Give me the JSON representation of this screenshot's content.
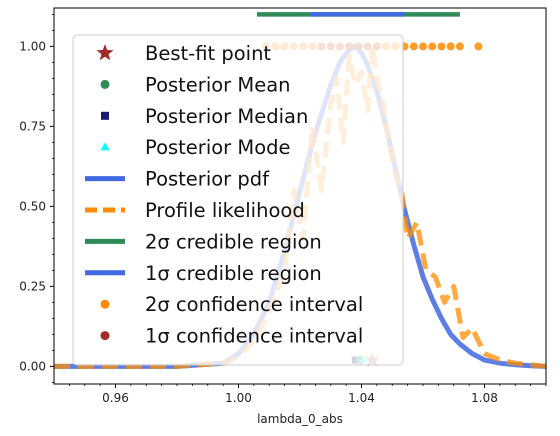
{
  "chart_data": {
    "type": "line",
    "xlabel": "lambda_0_abs",
    "ylabel": "",
    "xlim": [
      0.94,
      1.1
    ],
    "ylim": [
      -0.055,
      1.12
    ],
    "xticks": [
      0.96,
      1.0,
      1.04,
      1.08
    ],
    "xtick_labels": [
      "0.96",
      "1.00",
      "1.04",
      "1.08"
    ],
    "yticks": [
      0.0,
      0.25,
      0.5,
      0.75,
      1.0
    ],
    "ytick_labels": [
      "0.00",
      "0.25",
      "0.50",
      "0.75",
      "1.00"
    ],
    "grid": false,
    "legend_placement": "upper-left",
    "legend": [
      {
        "label": "Best-fit point",
        "marker": "star",
        "color": "#a52a2a"
      },
      {
        "label": "Posterior Mean",
        "marker": "circle",
        "color": "#2e8b57"
      },
      {
        "label": "Posterior Median",
        "marker": "square",
        "color": "#191970"
      },
      {
        "label": "Posterior Mode",
        "marker": "triangle",
        "color": "#00ffff"
      },
      {
        "label": "Posterior pdf",
        "marker": "line",
        "color": "#4169e1"
      },
      {
        "label": "Profile likelihood",
        "marker": "dashed",
        "color": "#ff8c00"
      },
      {
        "label": "2σ credible region",
        "marker": "line",
        "color": "#2e8b57"
      },
      {
        "label": "1σ credible region",
        "marker": "line",
        "color": "#4169e1"
      },
      {
        "label": "2σ confidence interval",
        "marker": "circle",
        "color": "#ff8c00"
      },
      {
        "label": "1σ confidence interval",
        "marker": "circle",
        "color": "#a52a2a"
      }
    ],
    "series": [
      {
        "name": "Posterior pdf",
        "color": "#4169e1",
        "x": [
          0.94,
          0.96,
          0.98,
          0.995,
          1.0,
          1.005,
          1.01,
          1.015,
          1.02,
          1.025,
          1.03,
          1.033,
          1.036,
          1.038,
          1.04,
          1.042,
          1.045,
          1.048,
          1.051,
          1.054,
          1.057,
          1.06,
          1.063,
          1.066,
          1.069,
          1.072,
          1.076,
          1.08,
          1.085,
          1.09,
          1.095,
          1.1
        ],
        "y": [
          0.0,
          0.0,
          0.0,
          0.01,
          0.04,
          0.1,
          0.2,
          0.36,
          0.55,
          0.73,
          0.88,
          0.95,
          0.99,
          1.0,
          0.98,
          0.94,
          0.86,
          0.75,
          0.62,
          0.49,
          0.38,
          0.28,
          0.21,
          0.15,
          0.1,
          0.07,
          0.04,
          0.02,
          0.01,
          0.005,
          0.002,
          0.0
        ]
      },
      {
        "name": "Profile likelihood",
        "color": "#ff8c00",
        "x": [
          0.94,
          0.96,
          0.98,
          0.995,
          1.0,
          1.005,
          1.01,
          1.015,
          1.018,
          1.021,
          1.024,
          1.027,
          1.03,
          1.032,
          1.034,
          1.036,
          1.038,
          1.04,
          1.042,
          1.0435,
          1.045,
          1.047,
          1.049,
          1.051,
          1.053,
          1.055,
          1.058,
          1.061,
          1.064,
          1.067,
          1.07,
          1.073,
          1.076,
          1.08,
          1.085,
          1.09,
          1.1
        ],
        "y": [
          0.0,
          0.0,
          0.0,
          0.01,
          0.03,
          0.08,
          0.17,
          0.3,
          0.55,
          0.4,
          0.75,
          0.55,
          0.82,
          0.9,
          0.7,
          0.97,
          0.88,
          0.92,
          0.8,
          1.0,
          0.9,
          0.82,
          0.7,
          0.6,
          0.55,
          0.4,
          0.45,
          0.3,
          0.28,
          0.2,
          0.25,
          0.09,
          0.12,
          0.04,
          0.02,
          0.01,
          0.0
        ]
      }
    ],
    "credible_regions": {
      "two_sigma": [
        1.006,
        1.072
      ],
      "one_sigma": [
        1.023,
        1.054
      ],
      "y": 1.1
    },
    "confidence_intervals": {
      "two_sigma_x": [
        1.009,
        1.012,
        1.015,
        1.018,
        1.021,
        1.024,
        1.027,
        1.03,
        1.033,
        1.036,
        1.039,
        1.042,
        1.045,
        1.048,
        1.051,
        1.054,
        1.057,
        1.06,
        1.063,
        1.066,
        1.069,
        1.072,
        1.078
      ],
      "one_sigma_x": [
        1.027,
        1.03,
        1.033,
        1.036,
        1.039,
        1.042,
        1.045
      ],
      "y": 1.0
    },
    "points": {
      "best_fit": {
        "x": 1.0435,
        "y": 0.02
      },
      "posterior_mean": {
        "x": 1.0395,
        "y": 0.02
      },
      "posterior_median": {
        "x": 1.038,
        "y": 0.02
      },
      "posterior_mode": {
        "x": 1.0405,
        "y": 0.02
      }
    }
  }
}
